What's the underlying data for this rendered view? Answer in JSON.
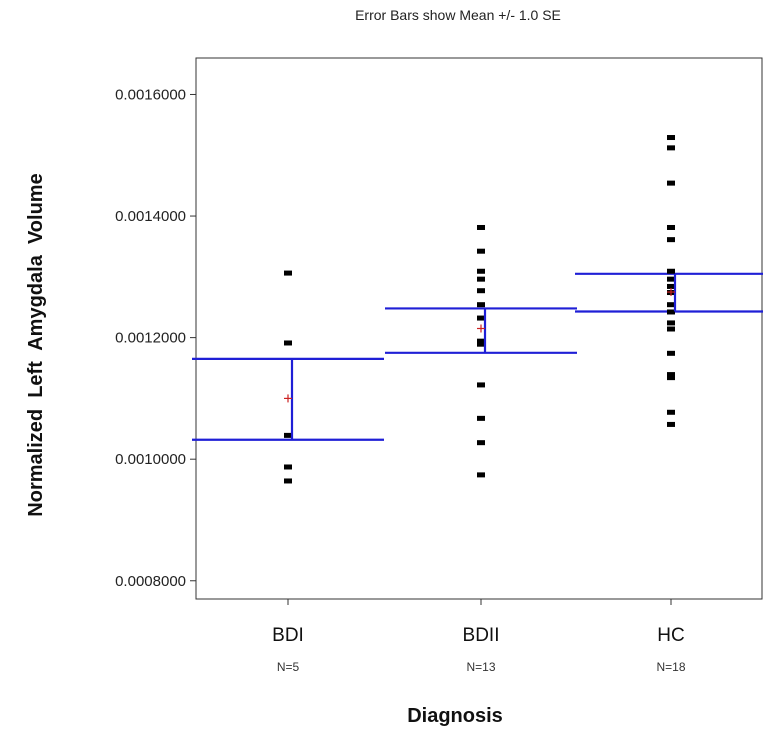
{
  "chart_data": {
    "type": "scatter",
    "title": "Error Bars show Mean +/- 1.0 SE",
    "xlabel": "Diagnosis",
    "ylabel": "Normalized  Left  Amygdala  Volume",
    "ylim": [
      0.00077,
      0.00166
    ],
    "yticks": [
      {
        "value": 0.0008,
        "label": "0.0008000"
      },
      {
        "value": 0.001,
        "label": "0.0010000"
      },
      {
        "value": 0.0012,
        "label": "0.0012000"
      },
      {
        "value": 0.0014,
        "label": "0.0014000"
      },
      {
        "value": 0.0016,
        "label": "0.0016000"
      }
    ],
    "grid": false,
    "categories": [
      "BDI",
      "BDII",
      "HC"
    ],
    "n_labels": [
      "N=5",
      "N=13",
      "N=18"
    ],
    "groups": [
      {
        "category": "BDI",
        "points": [
          0.001307,
          0.001192,
          0.00104,
          0.000988,
          0.000965
        ],
        "mean": 0.0011,
        "se_upper": 0.001165,
        "se_lower": 0.001032
      },
      {
        "category": "BDII",
        "points": [
          0.001382,
          0.001343,
          0.00131,
          0.001297,
          0.001278,
          0.001255,
          0.001233,
          0.001195,
          0.00119,
          0.001123,
          0.001068,
          0.001028,
          0.000975
        ],
        "mean": 0.001215,
        "se_upper": 0.001248,
        "se_lower": 0.001175
      },
      {
        "category": "HC",
        "points": [
          0.00153,
          0.001513,
          0.001455,
          0.001382,
          0.001362,
          0.00131,
          0.001297,
          0.001285,
          0.001255,
          0.001243,
          0.001225,
          0.001215,
          0.001175,
          0.00114,
          0.001135,
          0.001078,
          0.001058,
          0.001275
        ],
        "mean": 0.001275,
        "se_upper": 0.001305,
        "se_lower": 0.001243
      }
    ],
    "colors": {
      "points": "#000000",
      "error_bar": "#1f1fd6",
      "mean_marker": "#cc2222",
      "frame": "#333333"
    }
  }
}
